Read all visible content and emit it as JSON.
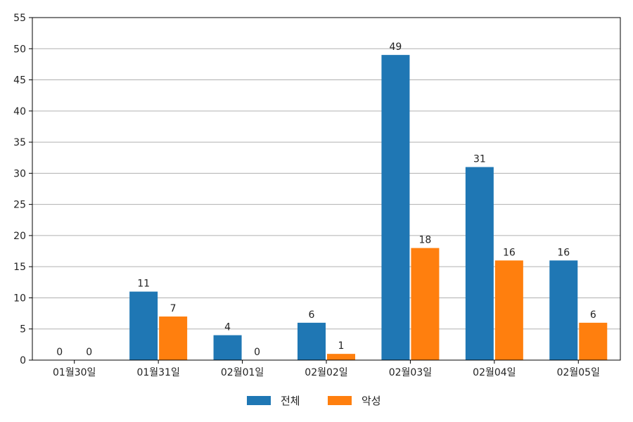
{
  "chart_data": {
    "type": "bar",
    "categories": [
      "01월30일",
      "01월31일",
      "02월01일",
      "02월02일",
      "02월03일",
      "02월04일",
      "02월05일"
    ],
    "series": [
      {
        "name": "전체",
        "color": "#1f77b4",
        "values": [
          0,
          11,
          4,
          6,
          49,
          31,
          16
        ]
      },
      {
        "name": "악성",
        "color": "#ff7f0e",
        "values": [
          0,
          7,
          0,
          1,
          18,
          16,
          6
        ]
      }
    ],
    "yticks": [
      0,
      5,
      10,
      15,
      20,
      25,
      30,
      35,
      40,
      45,
      50,
      55
    ],
    "ylim": [
      0,
      55
    ],
    "grid": true,
    "legend_position": "bottom-center",
    "data_labels": true
  }
}
